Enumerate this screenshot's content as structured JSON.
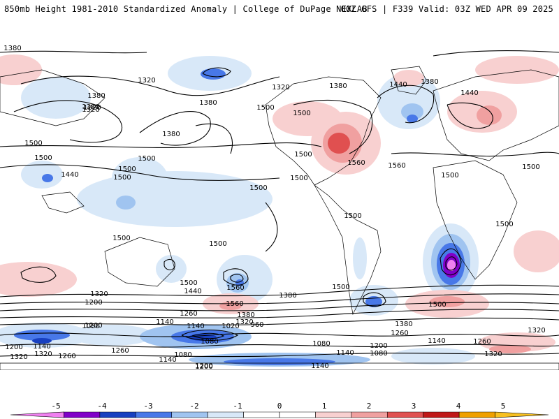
{
  "header": {
    "title_left": "850mb Height 1981-2010 Standardized Anomaly | College of DuPage NEXLAB",
    "title_right": "00Z GFS | F339 Valid: 03Z WED APR 09 2025"
  },
  "map": {
    "projection": "global equirectangular, centered on the Pacific",
    "contour_variable": "850mb Height",
    "contour_labels": [
      "1380",
      "1320",
      "1380",
      "1320",
      "1380",
      "1440",
      "1320",
      "1380",
      "1320",
      "1380",
      "1380",
      "1380",
      "1440",
      "1500",
      "1500",
      "1500",
      "1500",
      "1500",
      "1440",
      "1500",
      "1500",
      "1560",
      "1500",
      "1560",
      "1500",
      "1500",
      "1500",
      "1500",
      "1500",
      "1500",
      "1500",
      "1500",
      "1500",
      "1500",
      "1560",
      "1440",
      "1380",
      "1320",
      "1200",
      "1560",
      "1380",
      "1320",
      "1260",
      "1140",
      "1080",
      "1200",
      "1140",
      "1020",
      "1080",
      "960",
      "1200",
      "1260",
      "1140",
      "1080",
      "1200",
      "1140",
      "1080",
      "1320",
      "1140",
      "1260",
      "1200",
      "1380",
      "1500",
      "1260",
      "1320",
      "1080",
      "1140",
      "1260",
      "1320",
      "1140",
      "1200",
      "1320"
    ]
  },
  "colorbar": {
    "ticks": [
      "-5",
      "-4",
      "-3",
      "-2",
      "-1",
      "0",
      "1",
      "2",
      "3",
      "4",
      "5"
    ],
    "colors": [
      "#f080f0",
      "#8000c8",
      "#1840c0",
      "#4878e8",
      "#a0c4f0",
      "#d8e8f8",
      "#ffffff",
      "#ffffff",
      "#f8d0d0",
      "#f0a0a0",
      "#e05050",
      "#c01818",
      "#f0a000",
      "#f8c020"
    ]
  }
}
